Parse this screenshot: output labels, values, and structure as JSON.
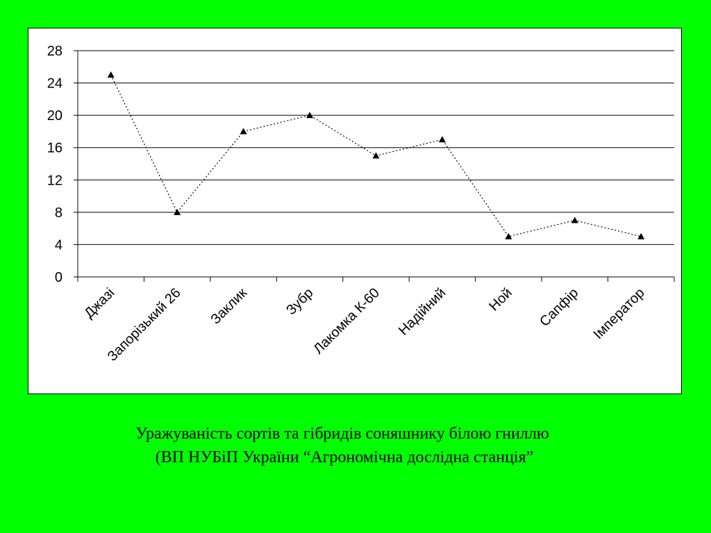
{
  "chart_data": {
    "type": "line",
    "title": "",
    "xlabel": "",
    "ylabel": "",
    "categories": [
      "Джазі",
      "Запорізький 26",
      "Заклик",
      "Зубр",
      "Лакомка К-60",
      "Надійний",
      "Ной",
      "Сапфір",
      "Імператор"
    ],
    "values": [
      25,
      8,
      18,
      20,
      15,
      17,
      5,
      7,
      5
    ],
    "ylim": [
      0,
      28
    ],
    "yticks": [
      "0",
      "4",
      "8",
      "12",
      "16",
      "20",
      "24",
      "28"
    ],
    "grid": true,
    "legend": "none",
    "marker": "triangle",
    "line_style": "dotted",
    "line_color": "#000000"
  },
  "caption": {
    "line1": "Уражуваність сортів та гібридів соняшнику білою гниллю",
    "line2": "(ВП НУБіП України “Агрономічна дослідна станція”"
  },
  "colors": {
    "background": "#00ff00",
    "plot_area": "#ffffff",
    "grid": "#000000"
  }
}
